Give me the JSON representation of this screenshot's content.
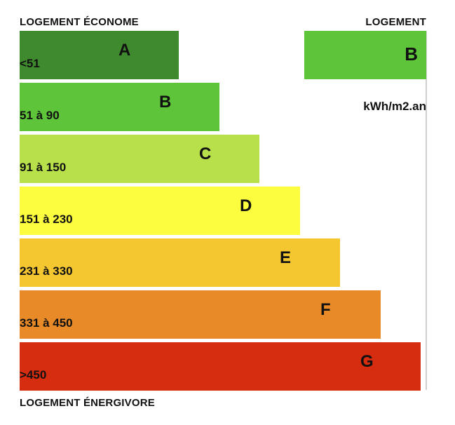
{
  "labels": {
    "top_left": "LOGEMENT ÉCONOME",
    "top_right": "LOGEMENT",
    "bottom_left": "LOGEMENT ÉNERGIVORE",
    "unit": "kWh/m2.an"
  },
  "chart_data": {
    "type": "bar",
    "orientation": "horizontal",
    "title": "",
    "categories": [
      "A",
      "B",
      "C",
      "D",
      "E",
      "F",
      "G"
    ],
    "ranges": [
      "<51",
      "51 à 90",
      "91 à 150",
      "151 à 230",
      "231 à 330",
      "331 à 450",
      ">450"
    ],
    "colors": [
      "#3f8a2e",
      "#5ec53a",
      "#b8e04a",
      "#fdfd3f",
      "#f4c731",
      "#e88a27",
      "#d62c10"
    ],
    "current_class": "B",
    "current_color": "#5ec53a"
  }
}
